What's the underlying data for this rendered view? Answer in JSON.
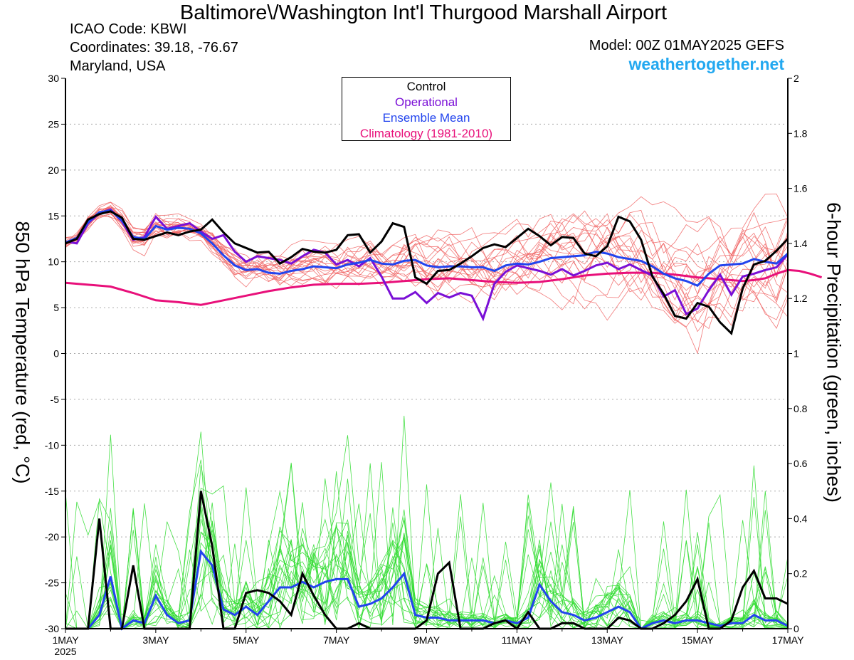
{
  "header": {
    "title": "Baltimore\\/Washington Int'l Thurgood Marshall Airport",
    "icao": "ICAO Code: KBWI",
    "coordinates": "Coordinates: 39.18, -76.67",
    "region": "Maryland, USA",
    "model": "Model: 00Z 01MAY2025 GEFS",
    "site": "weathertogether.net"
  },
  "colors": {
    "control": "#000000",
    "operational": "#7a0fd6",
    "ensemble_mean": "#2244ee",
    "climatology": "#e8107a",
    "members_temp": "#f06060",
    "members_precip": "#33dd33",
    "site": "#22a8f0"
  },
  "chart_data": {
    "type": "line",
    "xlabel": "",
    "ylabel": "850 hPa Temperature (red, °C)",
    "y2label": "6-hour Precipitation (green, inches)",
    "x_tick_labels": [
      "1MAY",
      "3MAY",
      "5MAY",
      "7MAY",
      "9MAY",
      "11MAY",
      "13MAY",
      "15MAY",
      "17MAY"
    ],
    "x_tick_year": "2025",
    "x_range_days": [
      0,
      16
    ],
    "ylim": [
      -30,
      30
    ],
    "y2lim": [
      0,
      2
    ],
    "y_ticks": [
      "30",
      "25",
      "20",
      "15",
      "10",
      "5",
      "0",
      "-5",
      "-10",
      "-15",
      "-20",
      "-25",
      "-30"
    ],
    "y2_ticks": [
      "2",
      "1.8",
      "1.6",
      "1.4",
      "1.2",
      "1",
      "0.8",
      "0.6",
      "0.4",
      "0.2",
      "0"
    ],
    "grid": true,
    "legend": [
      "Control",
      "Operational",
      "Ensemble Mean",
      "Climatology (1981-2010)"
    ],
    "legend_placement": "top-center",
    "x": [
      0,
      0.25,
      0.5,
      0.75,
      1,
      1.25,
      1.5,
      1.75,
      2,
      2.25,
      2.5,
      2.75,
      3,
      3.25,
      3.5,
      3.75,
      4,
      4.25,
      4.5,
      4.75,
      5,
      5.25,
      5.5,
      5.75,
      6,
      6.25,
      6.5,
      6.75,
      7,
      7.25,
      7.5,
      7.75,
      8,
      8.25,
      8.5,
      8.75,
      9,
      9.25,
      9.5,
      9.75,
      10,
      10.25,
      10.5,
      10.75,
      11,
      11.25,
      11.5,
      11.75,
      12,
      12.25,
      12.5,
      12.75,
      13,
      13.25,
      13.5,
      13.75,
      14,
      14.25,
      14.5,
      14.75,
      15,
      15.25,
      15.5,
      15.75,
      16
    ],
    "temperature": [
      {
        "name": "Control",
        "values": [
          12.0,
          12.5,
          14.6,
          15.2,
          15.5,
          14.8,
          12.5,
          12.4,
          12.8,
          13.2,
          12.9,
          13.3,
          13.5,
          14.6,
          13.2,
          12.0,
          11.5,
          11.0,
          11.1,
          9.8,
          10.5,
          11.4,
          11.1,
          11.0,
          11.3,
          12.9,
          13.0,
          11.0,
          12.2,
          14.2,
          13.8,
          8.3,
          7.6,
          9.0,
          9.1,
          9.8,
          10.6,
          11.5,
          11.9,
          11.6,
          12.6,
          13.6,
          12.8,
          11.8,
          12.7,
          12.6,
          10.9,
          10.6,
          11.7,
          14.9,
          14.4,
          12.4,
          8.4,
          6.5,
          4.1,
          3.8,
          5.5,
          5.1,
          3.4,
          2.2,
          7.1,
          9.7,
          10.1,
          11.2,
          12.5
        ]
      },
      {
        "name": "Operational",
        "values": [
          12.2,
          12.0,
          14.2,
          15.3,
          15.7,
          14.4,
          12.4,
          12.7,
          14.9,
          13.6,
          13.9,
          14.2,
          13.3,
          12.5,
          12.9,
          11.1,
          10.0,
          10.6,
          10.4,
          10.2,
          9.8,
          10.6,
          11.3,
          11.0,
          9.7,
          10.2,
          9.5,
          10.4,
          8.4,
          6.0,
          6.0,
          6.7,
          5.5,
          6.6,
          6.1,
          6.6,
          6.3,
          3.8,
          7.6,
          8.9,
          9.6,
          9.3,
          9.0,
          8.6,
          9.2,
          8.5,
          9.0,
          9.6,
          9.9,
          9.2,
          9.7,
          9.1,
          8.5,
          6.2,
          6.9,
          4.3,
          4.9,
          6.9,
          8.6,
          6.4,
          8.4,
          8.7,
          9.1,
          9.4,
          10.8
        ]
      },
      {
        "name": "Ensemble Mean",
        "values": [
          12.1,
          12.6,
          14.3,
          15.4,
          15.6,
          14.5,
          12.7,
          12.5,
          13.9,
          13.5,
          13.7,
          13.6,
          13.1,
          12.0,
          10.7,
          9.6,
          9.1,
          9.2,
          8.8,
          8.7,
          9.0,
          9.2,
          9.5,
          9.4,
          9.3,
          9.7,
          9.9,
          10.2,
          9.8,
          9.7,
          10.1,
          10.2,
          9.6,
          9.4,
          9.5,
          9.5,
          9.4,
          9.4,
          9.0,
          9.6,
          9.8,
          9.7,
          10.0,
          10.4,
          10.5,
          10.6,
          10.7,
          11.1,
          10.9,
          10.5,
          10.3,
          10.1,
          9.5,
          8.7,
          8.2,
          7.9,
          7.4,
          8.7,
          9.6,
          9.7,
          9.8,
          10.3,
          10.0,
          9.8,
          10.9
        ]
      },
      {
        "name": "Climatology (1981-2010)",
        "values": [
          7.7,
          7.5,
          7.3,
          6.6,
          5.8,
          5.6,
          5.3,
          5.8,
          6.3,
          6.8,
          7.2,
          7.5,
          7.6,
          7.6,
          7.7,
          7.9,
          8.1,
          8.2,
          8.0,
          7.8,
          7.7,
          7.8,
          8.1,
          8.5,
          8.7,
          8.8,
          8.8,
          8.6,
          8.3,
          8.1,
          7.9,
          8.0,
          8.2,
          8.7,
          9.1,
          9.0,
          8.7,
          8.3
        ]
      }
    ],
    "climatology_x": [
      0,
      0.5,
      1,
      1.5,
      2,
      2.5,
      3,
      3.5,
      4,
      4.5,
      5,
      5.5,
      6,
      6.5,
      7,
      7.5,
      8,
      8.5,
      9,
      9.5,
      10,
      10.5,
      11,
      11.5,
      12,
      12.5,
      13,
      13.5,
      14,
      14.5,
      15,
      15.25,
      15.5,
      15.75,
      16,
      16.25,
      16.5,
      16.75
    ],
    "precipitation": [
      {
        "name": "Control",
        "values": [
          0.0,
          0.0,
          0.0,
          0.4,
          0.0,
          0.0,
          0.23,
          0.0,
          0.0,
          0.0,
          0.0,
          0.0,
          0.5,
          0.3,
          0.0,
          0.0,
          0.13,
          0.14,
          0.13,
          0.1,
          0.05,
          0.2,
          0.12,
          0.05,
          0.0,
          0.0,
          0.02,
          0.0,
          0.0,
          0.0,
          0.0,
          0.0,
          0.03,
          0.2,
          0.24,
          0.0,
          0.0,
          0.0,
          0.02,
          0.03,
          0.0,
          0.06,
          0.0,
          0.0,
          0.02,
          0.02,
          0.0,
          0.0,
          0.0,
          0.04,
          0.03,
          0.0,
          0.0,
          0.02,
          0.05,
          0.1,
          0.18,
          0.0,
          0.0,
          0.03,
          0.15,
          0.21,
          0.11,
          0.11,
          0.09
        ]
      },
      {
        "name": "Ensemble Mean",
        "values": [
          0.0,
          0.0,
          0.0,
          0.05,
          0.19,
          0.0,
          0.03,
          0.02,
          0.12,
          0.05,
          0.02,
          0.03,
          0.28,
          0.23,
          0.07,
          0.05,
          0.08,
          0.05,
          0.1,
          0.15,
          0.15,
          0.17,
          0.15,
          0.17,
          0.18,
          0.18,
          0.08,
          0.09,
          0.11,
          0.15,
          0.2,
          0.05,
          0.04,
          0.04,
          0.03,
          0.03,
          0.03,
          0.03,
          0.02,
          0.03,
          0.02,
          0.04,
          0.16,
          0.1,
          0.06,
          0.05,
          0.03,
          0.04,
          0.06,
          0.08,
          0.06,
          0.0,
          0.02,
          0.03,
          0.02,
          0.03,
          0.03,
          0.02,
          0.01,
          0.02,
          0.02,
          0.05,
          0.03,
          0.03,
          0.01
        ]
      }
    ]
  }
}
